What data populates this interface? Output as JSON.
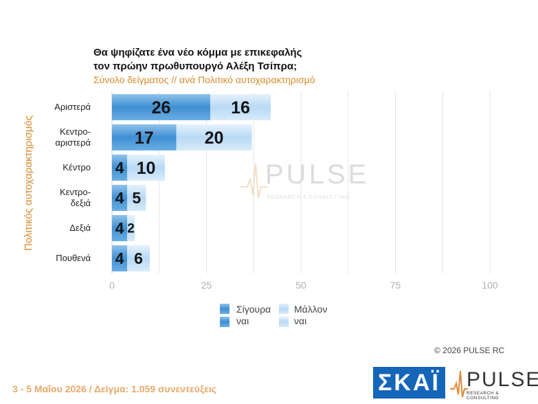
{
  "header": {
    "title_line1": "Θα ψηφίζατε ένα νέο κόμμα με επικεφαλής",
    "title_line2": "τον πρώην πρωθυπουργό Αλέξη Τσίπρα;",
    "subtitle": "Σύνολο δείγματος // ανά Πολιτικό    αυτοχαρακτηρισμό"
  },
  "chart_data": {
    "type": "bar",
    "orientation": "horizontal",
    "stacked": true,
    "title": "Θα ψηφίζατε ένα νέο κόμμα με επικεφαλής τον πρώην πρωθυπουργό Αλέξη Τσίπρα;",
    "subtitle": "Σύνολο δείγματος // ανά Πολιτικό    αυτοχαρακτηρισμό",
    "ylabel": "Πολιτικός αυτοχαρακτηρισμός",
    "categories": [
      [
        "Αριστερά"
      ],
      [
        "Κεντρο-",
        "αριστερά"
      ],
      [
        "Κέντρο"
      ],
      [
        "Κεντρο-",
        "δεξιά"
      ],
      [
        "Δεξιά"
      ],
      [
        "Πουθενά"
      ]
    ],
    "series": [
      {
        "name": "Σίγουρα ναι",
        "name_lines": [
          "Σίγουρα",
          "ναι"
        ],
        "color": "#4a98d8",
        "values": [
          26,
          17,
          4,
          4,
          4,
          4
        ]
      },
      {
        "name": "Μάλλον ναι",
        "name_lines": [
          "Μάλλον",
          "ναι"
        ],
        "color": "#bcdcf6",
        "values": [
          16,
          20,
          10,
          5,
          2,
          6
        ]
      }
    ],
    "xlim": [
      0,
      100
    ],
    "xticks": [
      0,
      25,
      50,
      75,
      100
    ],
    "grid": true,
    "legend": "bottom"
  },
  "watermark": {
    "word": "PULSE",
    "sub": "RESEARCH & CONSULTING"
  },
  "footer": {
    "copyright": "©  2026  PULSE RC",
    "date_sample": "3 - 5  Μαΐου 2026  /  Δείγμα:  1.059 συνεντεύξεις",
    "skai_logo": "ΣΚΑΪ",
    "pulse_logo": "PULSE",
    "pulse_sub": "RESEARCH & CONSULTING"
  },
  "colors": {
    "accent_orange": "#d9892b",
    "footer_orange": "#e9a868",
    "skai_blue": "#1565b8"
  }
}
